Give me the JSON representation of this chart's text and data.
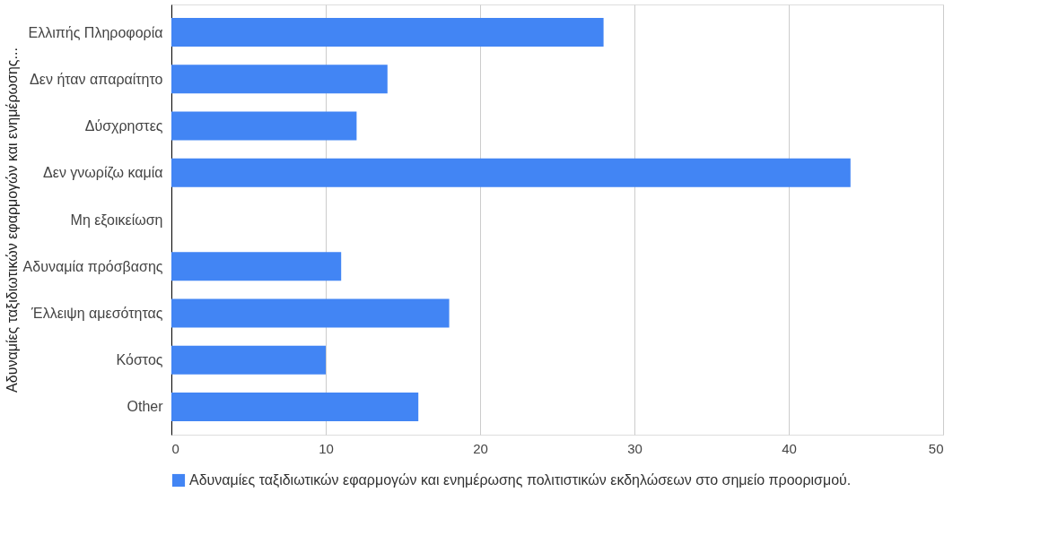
{
  "chart_data": {
    "type": "bar",
    "orientation": "horizontal",
    "ylabel": "Αδυναμίες ταξιδιωτικών εφαρμογών και ενημέρωσης...",
    "categories": [
      "Ελλιπής Πληροφορία",
      "Δεν ήταν απαραίτητο",
      "Δύσχρηστες",
      "Δεν γνωρίζω καμία",
      "Μη εξοικείωση",
      "Αδυναμία πρόσβασης",
      "Έλλειψη αμεσότητας",
      "Κόστος",
      "Other"
    ],
    "series": [
      {
        "name": "Αδυναμίες ταξιδιωτικών εφαρμογών και ενημέρωσης πολιτιστικών εκδηλώσεων στο σημείο προορισμού.",
        "color": "#4285f4",
        "values": [
          28,
          14,
          12,
          44,
          0,
          11,
          18,
          10,
          16
        ]
      }
    ],
    "xlim": [
      0,
      50
    ],
    "xticks": [
      0,
      10,
      20,
      30,
      40,
      50
    ],
    "grid": "x",
    "legend": "bottom left"
  }
}
